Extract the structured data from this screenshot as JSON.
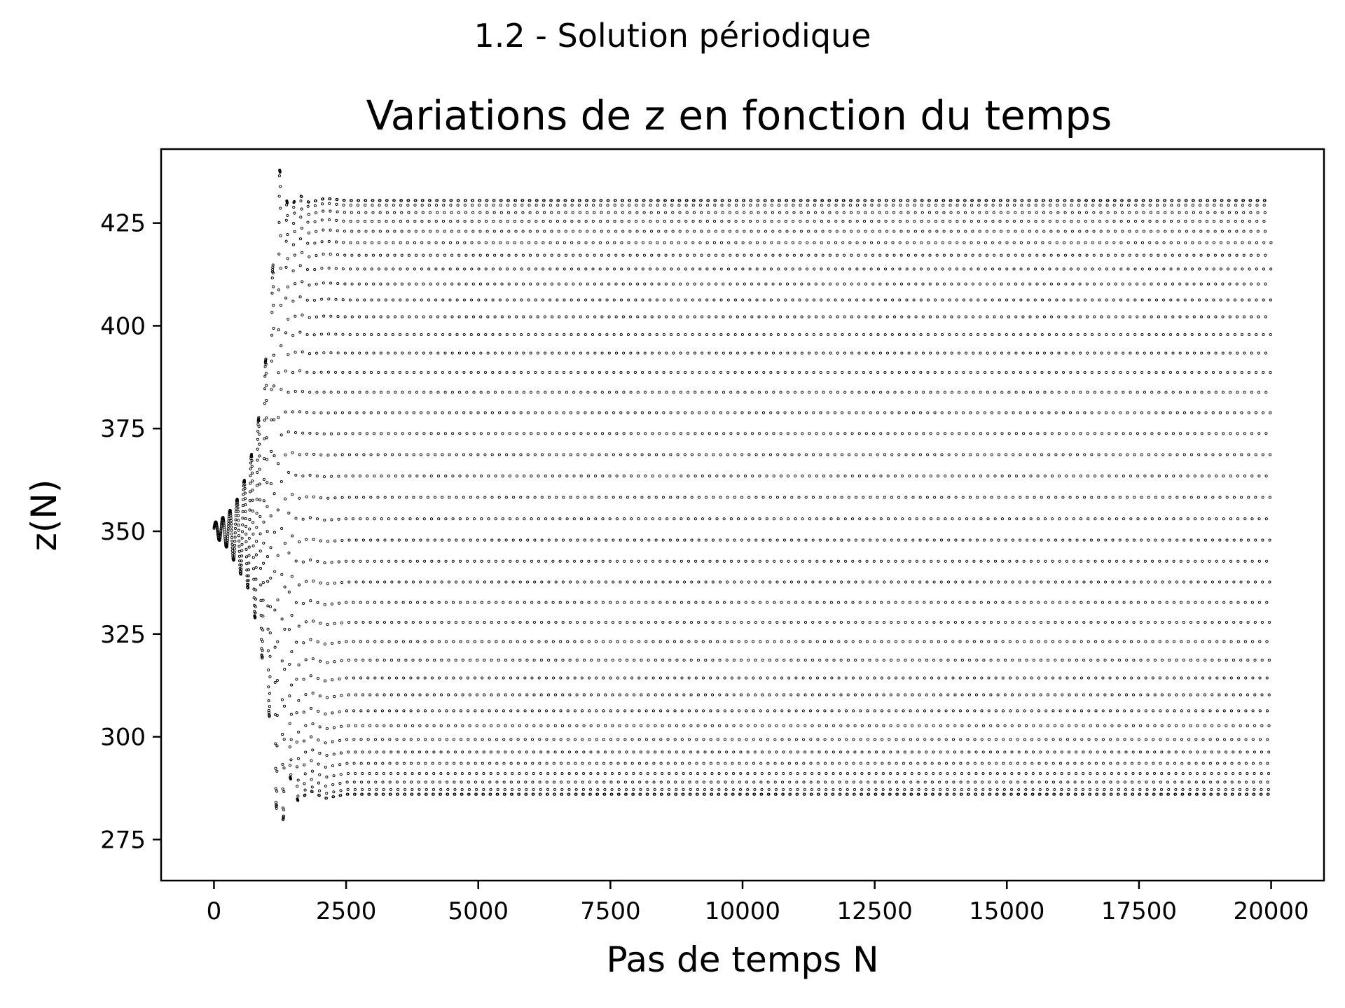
{
  "figure": {
    "suptitle": "1.2 - Solution périodique"
  },
  "chart_data": {
    "type": "scatter",
    "title": "Variations de z en fonction du temps",
    "xlabel": "Pas de temps N",
    "ylabel": "z(N)",
    "xlim": [
      -1000,
      21000
    ],
    "ylim": [
      265,
      443
    ],
    "xticks": [
      0,
      2500,
      5000,
      7500,
      10000,
      12500,
      15000,
      17500,
      20000
    ],
    "yticks": [
      275,
      300,
      325,
      350,
      375,
      400,
      425
    ],
    "marker": "small hollow circles",
    "color": "#000000",
    "grid": false,
    "n_points": 20000,
    "series": [
      {
        "x_range": [
          0,
          20000
        ],
        "initial_value": 350,
        "period_steps": 135,
        "steady_state_range": [
          286,
          430.5
        ],
        "envelope": [
          {
            "x": 0,
            "min": 349,
            "max": 352
          },
          {
            "x": 250,
            "min": 346,
            "max": 354
          },
          {
            "x": 450,
            "min": 341,
            "max": 358
          },
          {
            "x": 650,
            "min": 336,
            "max": 365
          },
          {
            "x": 830,
            "min": 326,
            "max": 376
          },
          {
            "x": 1010,
            "min": 311,
            "max": 395
          },
          {
            "x": 1240,
            "min": 273,
            "max": 438
          },
          {
            "x": 1420,
            "min": 291,
            "max": 428
          },
          {
            "x": 1600,
            "min": 284,
            "max": 432
          },
          {
            "x": 1800,
            "min": 287,
            "max": 430
          },
          {
            "x": 2100,
            "min": 285,
            "max": 431
          },
          {
            "x": 2500,
            "min": 286,
            "max": 430.5
          },
          {
            "x": 20000,
            "min": 286,
            "max": 430.5
          }
        ]
      }
    ]
  }
}
